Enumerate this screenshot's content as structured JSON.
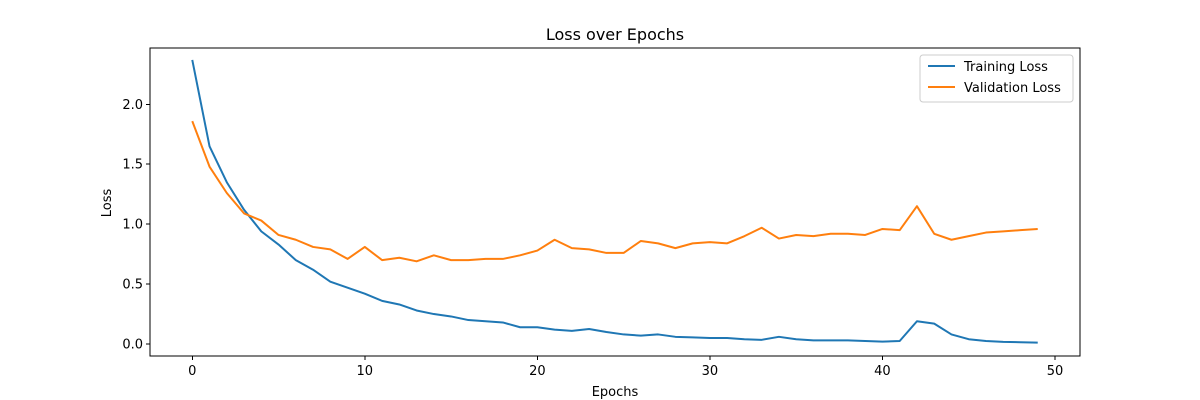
{
  "chart_data": {
    "type": "line",
    "title": "Loss over Epochs",
    "xlabel": "Epochs",
    "ylabel": "Loss",
    "xlim": [
      -2.45,
      51.45
    ],
    "ylim": [
      -0.1,
      2.47
    ],
    "xticks": [
      0,
      10,
      20,
      30,
      40,
      50
    ],
    "yticks": [
      0.0,
      0.5,
      1.0,
      1.5,
      2.0
    ],
    "xtick_labels": [
      "0",
      "10",
      "20",
      "30",
      "40",
      "50"
    ],
    "ytick_labels": [
      "0.0",
      "0.5",
      "1.0",
      "1.5",
      "2.0"
    ],
    "grid": false,
    "legend_position": "top-right",
    "x": [
      0,
      1,
      2,
      3,
      4,
      5,
      6,
      7,
      8,
      9,
      10,
      11,
      12,
      13,
      14,
      15,
      16,
      17,
      18,
      19,
      20,
      21,
      22,
      23,
      24,
      25,
      26,
      27,
      28,
      29,
      30,
      31,
      32,
      33,
      34,
      35,
      36,
      37,
      38,
      39,
      40,
      41,
      42,
      43,
      44,
      45,
      46,
      47,
      48,
      49
    ],
    "series": [
      {
        "name": "Training Loss",
        "color": "#1f77b4",
        "values": [
          2.37,
          1.65,
          1.35,
          1.12,
          0.94,
          0.83,
          0.7,
          0.62,
          0.52,
          0.47,
          0.42,
          0.36,
          0.33,
          0.28,
          0.25,
          0.23,
          0.2,
          0.19,
          0.18,
          0.14,
          0.14,
          0.12,
          0.11,
          0.125,
          0.1,
          0.08,
          0.07,
          0.08,
          0.06,
          0.055,
          0.05,
          0.05,
          0.04,
          0.035,
          0.06,
          0.04,
          0.03,
          0.03,
          0.03,
          0.025,
          0.02,
          0.025,
          0.19,
          0.17,
          0.08,
          0.04,
          0.025,
          0.018,
          0.015,
          0.012
        ]
      },
      {
        "name": "Validation Loss",
        "color": "#ff7f0e",
        "values": [
          1.86,
          1.48,
          1.26,
          1.09,
          1.03,
          0.91,
          0.87,
          0.81,
          0.79,
          0.71,
          0.81,
          0.7,
          0.72,
          0.69,
          0.74,
          0.7,
          0.7,
          0.71,
          0.71,
          0.74,
          0.78,
          0.87,
          0.8,
          0.79,
          0.76,
          0.76,
          0.86,
          0.84,
          0.8,
          0.84,
          0.85,
          0.84,
          0.9,
          0.97,
          0.88,
          0.91,
          0.9,
          0.92,
          0.92,
          0.91,
          0.96,
          0.95,
          1.15,
          0.92,
          0.87,
          0.9,
          0.93,
          0.94,
          0.95,
          0.96
        ]
      }
    ]
  }
}
